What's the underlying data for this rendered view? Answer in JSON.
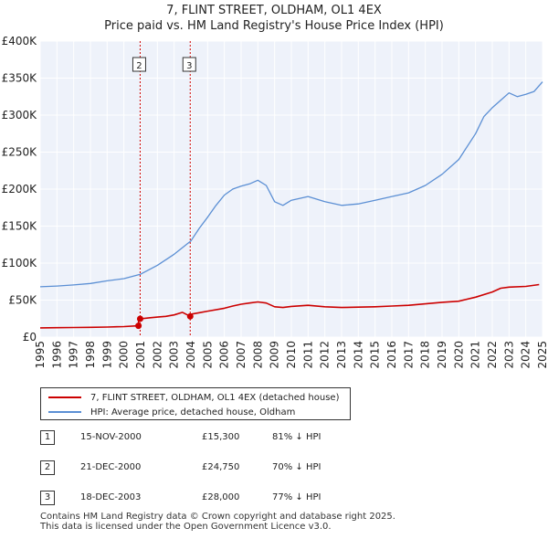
{
  "title_line1": "7, FLINT STREET, OLDHAM, OL1 4EX",
  "title_line2": "Price paid vs. HM Land Registry's House Price Index (HPI)",
  "colors": {
    "property": "#cc0000",
    "hpi": "#5b8fd4",
    "grid": "#cccccc",
    "plot_bg": "#eef2fa",
    "marker_line": "#cc0000"
  },
  "chart_data": {
    "type": "line",
    "title": "7, FLINT STREET, OLDHAM, OL1 4EX — Price paid vs. HM Land Registry's House Price Index (HPI)",
    "xlabel": "",
    "ylabel": "",
    "xlim": [
      1995,
      2025
    ],
    "ylim": [
      0,
      400000
    ],
    "y_tick_labels": [
      {
        "value": 0,
        "label": "£0"
      },
      {
        "value": 50000,
        "label": "£50K"
      },
      {
        "value": 100000,
        "label": "£100K"
      },
      {
        "value": 150000,
        "label": "£150K"
      },
      {
        "value": 200000,
        "label": "£200K"
      },
      {
        "value": 250000,
        "label": "£250K"
      },
      {
        "value": 300000,
        "label": "£300K"
      },
      {
        "value": 350000,
        "label": "£350K"
      },
      {
        "value": 400000,
        "label": "£400K"
      }
    ],
    "x_tick_labels": [
      "1995",
      "1996",
      "1997",
      "1998",
      "1999",
      "2000",
      "2001",
      "2002",
      "2003",
      "2004",
      "2005",
      "2006",
      "2007",
      "2008",
      "2009",
      "2010",
      "2011",
      "2012",
      "2013",
      "2014",
      "2015",
      "2016",
      "2017",
      "2018",
      "2019",
      "2020",
      "2021",
      "2022",
      "2023",
      "2024",
      "2025"
    ],
    "series": [
      {
        "name": "7, FLINT STREET, OLDHAM, OL1 4EX (detached house)",
        "x": [
          1995.0,
          1996.0,
          1997.0,
          1998.0,
          1999.0,
          2000.0,
          2000.87,
          2000.88,
          2000.97,
          2001.5,
          2002.0,
          2002.5,
          2003.0,
          2003.5,
          2003.96,
          2004.0,
          2004.5,
          2005.0,
          2006.0,
          2006.5,
          2007.0,
          2007.5,
          2008.0,
          2008.5,
          2009.0,
          2009.5,
          2010.0,
          2011.0,
          2012.0,
          2013.0,
          2014.0,
          2015.0,
          2016.0,
          2017.0,
          2018.0,
          2019.0,
          2020.0,
          2021.0,
          2022.0,
          2022.5,
          2023.0,
          2024.0,
          2024.8
        ],
        "y": [
          12500,
          12700,
          13000,
          13200,
          13600,
          14200,
          15300,
          24750,
          24750,
          26000,
          27000,
          28000,
          30000,
          33500,
          28000,
          31000,
          33000,
          35000,
          39000,
          42000,
          44500,
          46000,
          47500,
          46000,
          41000,
          40000,
          41500,
          43000,
          41000,
          40000,
          40500,
          41000,
          42000,
          43000,
          45000,
          47000,
          48500,
          54000,
          61000,
          66000,
          67500,
          68500,
          71000
        ]
      },
      {
        "name": "HPI: Average price, detached house, Oldham",
        "x": [
          1995.0,
          1996.0,
          1997.0,
          1998.0,
          1999.0,
          2000.0,
          2001.0,
          2002.0,
          2003.0,
          2004.0,
          2004.5,
          2005.0,
          2005.5,
          2006.0,
          2006.5,
          2007.0,
          2007.5,
          2008.0,
          2008.5,
          2009.0,
          2009.5,
          2010.0,
          2011.0,
          2012.0,
          2013.0,
          2014.0,
          2015.0,
          2016.0,
          2017.0,
          2018.0,
          2019.0,
          2020.0,
          2021.0,
          2021.5,
          2022.0,
          2022.5,
          2023.0,
          2023.5,
          2024.0,
          2024.5,
          2025.0
        ],
        "y": [
          68000,
          69000,
          70500,
          72500,
          76000,
          79000,
          85000,
          97000,
          112000,
          130000,
          147000,
          162000,
          178000,
          192000,
          200000,
          204000,
          207000,
          212000,
          205000,
          183000,
          178000,
          185000,
          190000,
          183000,
          178000,
          180000,
          185000,
          190000,
          195000,
          205000,
          220000,
          240000,
          275000,
          298000,
          310000,
          320000,
          330000,
          325000,
          328000,
          332000,
          345000
        ]
      }
    ],
    "sales": [
      {
        "num": "1",
        "date": "15-NOV-2000",
        "x": 2000.87,
        "price": 15300,
        "price_label": "£15,300",
        "hpi": "81% ↓ HPI"
      },
      {
        "num": "2",
        "date": "21-DEC-2000",
        "x": 2000.97,
        "price": 24750,
        "price_label": "£24,750",
        "hpi": "70% ↓ HPI"
      },
      {
        "num": "3",
        "date": "18-DEC-2003",
        "x": 2003.96,
        "price": 28000,
        "price_label": "£28,000",
        "hpi": "77% ↓ HPI"
      }
    ],
    "marker_labels": [
      "2",
      "3"
    ]
  },
  "legend": {
    "property": "7, FLINT STREET, OLDHAM, OL1 4EX (detached house)",
    "hpi": "HPI: Average price, detached house, Oldham"
  },
  "footer": {
    "line1": "Contains HM Land Registry data © Crown copyright and database right 2025.",
    "line2": "This data is licensed under the Open Government Licence v3.0."
  }
}
